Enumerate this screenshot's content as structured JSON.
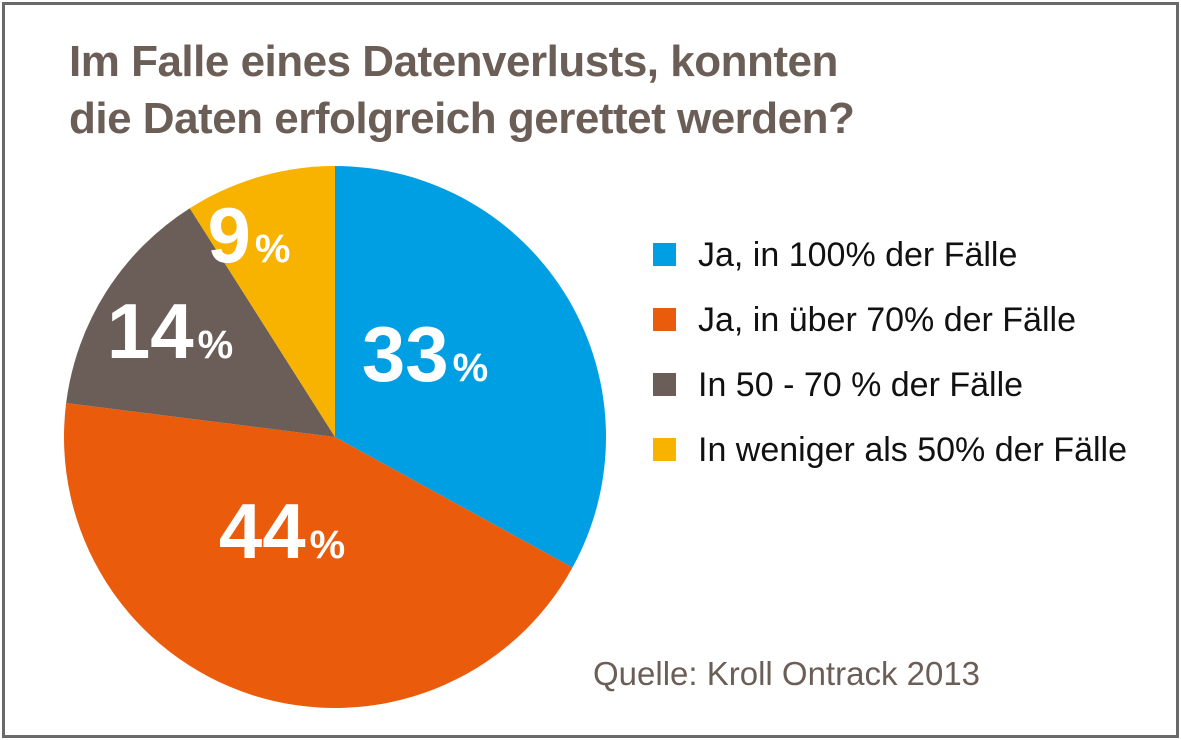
{
  "title": {
    "line1": "Im Falle eines Datenverlusts, konnten",
    "line2": "die Daten erfolgreich gerettet werden?"
  },
  "source": {
    "text": "Quelle: Kroll Ontrack 2013"
  },
  "chart_data": {
    "type": "pie",
    "title": "Im Falle eines Datenverlusts, konnten die Daten erfolgreich gerettet werden?",
    "categories": [
      "Ja, in 100% der Fälle",
      "Ja, in über 70% der Fälle",
      "In 50 - 70 % der Fälle",
      "In weniger als 50% der Fälle"
    ],
    "values": [
      33,
      44,
      14,
      9
    ],
    "unit": "%",
    "colors": [
      "#009FE3",
      "#EA5B0C",
      "#6B5E58",
      "#F8B200"
    ],
    "start_angle_deg": 0,
    "direction": "clockwise",
    "legend_position": "right",
    "slice_label_color": "#FFFFFF",
    "source": "Quelle: Kroll Ontrack 2013"
  },
  "colors": {
    "background": "#FFFFFF",
    "frame_border": "#696969",
    "title_text": "#6B5E57",
    "legend_text": "#111111",
    "source_text": "#6B5E57"
  }
}
